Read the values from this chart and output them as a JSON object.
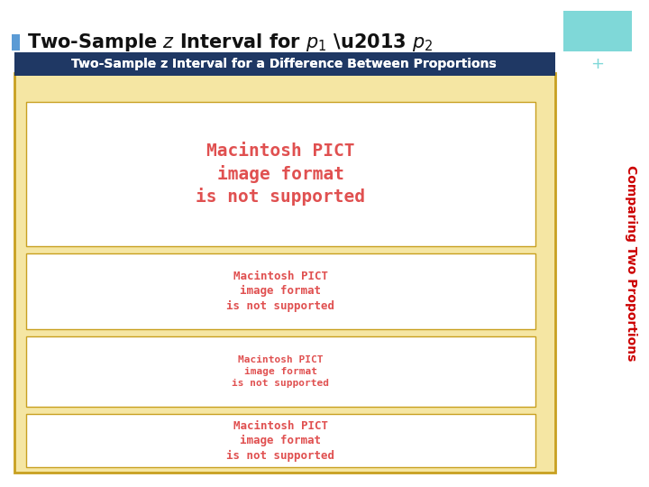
{
  "bg_color": "#ffffff",
  "title_bullet_color": "#5b9bd5",
  "title_fontsize": 15,
  "header_bg_color": "#1f3864",
  "header_text": "Two-Sample z Interval for a Difference Between Proportions",
  "header_text_color": "#ffffff",
  "header_fontsize": 10,
  "outer_box_color": "#f5e6a3",
  "outer_box_edge_color": "#c8a020",
  "inner_box_color": "#ffffff",
  "inner_box_edge_color": "#c8a020",
  "pict_text": "Macintosh PICT\nimage format\nis not supported",
  "pict_color": "#e05050",
  "teal_box_color": "#7fd8d8",
  "plus_color": "#7fd8d8",
  "sideways_text": "Comparing Two Proportions",
  "sideways_color": "#cc0000",
  "sideways_fontsize": 10,
  "box_configs": [
    [
      0.04,
      0.495,
      0.785,
      0.295,
      14
    ],
    [
      0.04,
      0.325,
      0.785,
      0.155,
      9
    ],
    [
      0.04,
      0.165,
      0.785,
      0.145,
      8
    ],
    [
      0.04,
      0.04,
      0.785,
      0.11,
      9
    ]
  ]
}
